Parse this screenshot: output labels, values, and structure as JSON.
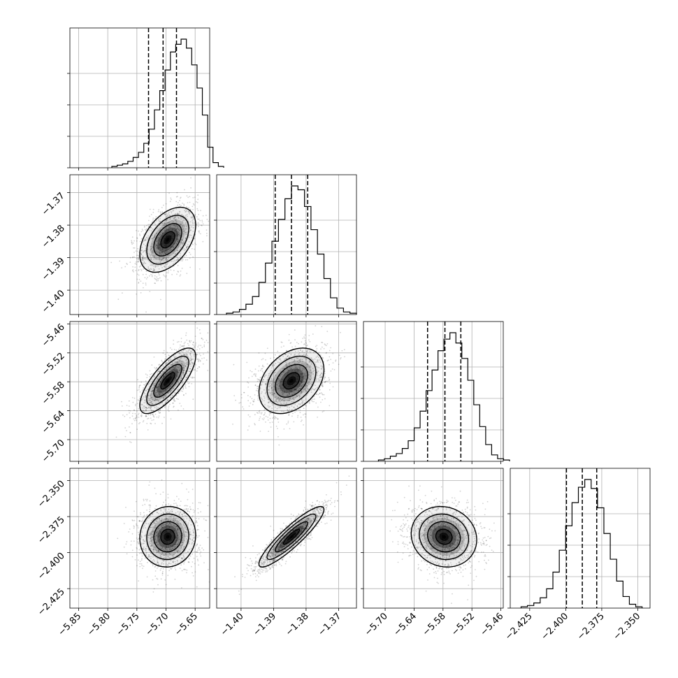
{
  "chart_data": {
    "type": "corner",
    "title": "",
    "n_params": 4,
    "parameter_labels": [
      "",
      "",
      "",
      ""
    ],
    "parameters": [
      {
        "range": [
          -5.865,
          -5.625
        ],
        "ticks": [
          -5.85,
          -5.8,
          -5.75,
          -5.7,
          -5.65
        ],
        "tick_labels": [
          "−5.85",
          "−5.80",
          "−5.75",
          "−5.70",
          "−5.65"
        ],
        "quantiles": [
          -5.73,
          -5.705,
          -5.682
        ],
        "mean": -5.697,
        "std": 0.024,
        "hist": [
          0.01,
          0.02,
          0.03,
          0.05,
          0.08,
          0.12,
          0.19,
          0.3,
          0.45,
          0.6,
          0.76,
          0.9,
          0.96,
          1.0,
          0.93,
          0.8,
          0.62,
          0.41,
          0.16,
          0.04,
          0.01
        ]
      },
      {
        "range": [
          -1.4075,
          -1.3645
        ],
        "ticks": [
          -1.4,
          -1.39,
          -1.38,
          -1.37
        ],
        "tick_labels": [
          "−1.40",
          "−1.39",
          "−1.38",
          "−1.37"
        ],
        "quantiles": [
          -1.3895,
          -1.3845,
          -1.3795
        ],
        "mean": -1.3845,
        "std": 0.005,
        "hist": [
          0.01,
          0.02,
          0.04,
          0.08,
          0.14,
          0.25,
          0.4,
          0.57,
          0.74,
          0.9,
          1.0,
          0.97,
          0.84,
          0.66,
          0.47,
          0.28,
          0.13,
          0.05,
          0.02,
          0.01
        ]
      },
      {
        "range": [
          -5.745,
          -5.455
        ],
        "ticks": [
          -5.7,
          -5.64,
          -5.58,
          -5.52,
          -5.46
        ],
        "tick_labels": [
          "−5.70",
          "−5.64",
          "−5.58",
          "−5.52",
          "−5.46"
        ],
        "quantiles": [
          -5.612,
          -5.576,
          -5.543
        ],
        "mean": -5.578,
        "std": 0.034,
        "hist": [
          0.01,
          0.02,
          0.04,
          0.06,
          0.1,
          0.16,
          0.26,
          0.39,
          0.55,
          0.71,
          0.86,
          0.95,
          1.0,
          0.92,
          0.8,
          0.63,
          0.44,
          0.27,
          0.13,
          0.05,
          0.02,
          0.01
        ]
      },
      {
        "range": [
          -2.4385,
          -2.3415
        ],
        "ticks": [
          -2.425,
          -2.4,
          -2.375,
          -2.35
        ],
        "tick_labels": [
          "−2.425",
          "−2.400",
          "−2.375",
          "−2.350"
        ],
        "quantiles": [
          -2.3995,
          -2.3885,
          -2.3785
        ],
        "mean": -2.389,
        "std": 0.0105,
        "hist": [
          0.01,
          0.02,
          0.04,
          0.08,
          0.15,
          0.28,
          0.45,
          0.64,
          0.82,
          0.94,
          1.0,
          0.93,
          0.78,
          0.58,
          0.38,
          0.21,
          0.09,
          0.03,
          0.01
        ]
      }
    ],
    "correlations": {
      "1_0": 0.45,
      "2_0": 0.75,
      "2_1": 0.35,
      "3_0": 0.05,
      "3_1": 0.9,
      "3_2": -0.1
    },
    "contour_levels_sigma": [
      0.5,
      1.0,
      1.5,
      2.0
    ],
    "grid": true,
    "colors": {
      "ink": "#000000",
      "grid": "#b0b0b0",
      "points": "#9a9a9a",
      "density": "#000000"
    }
  }
}
